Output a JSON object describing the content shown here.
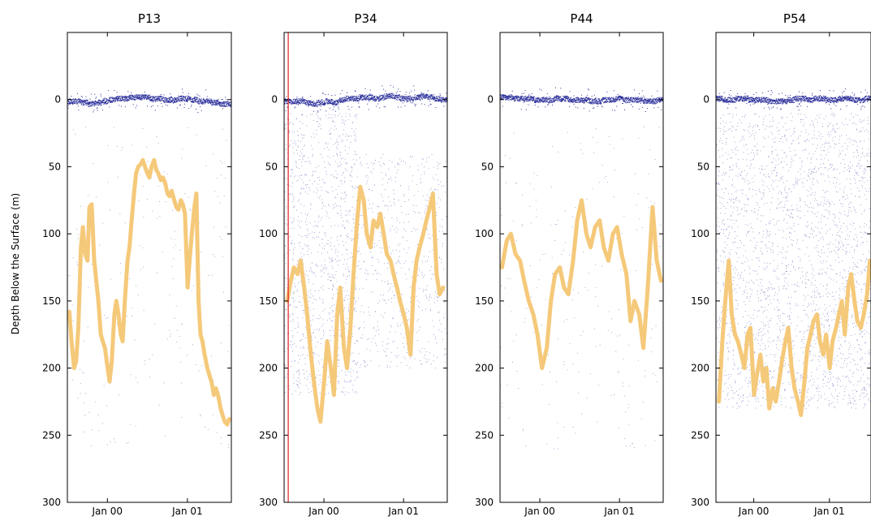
{
  "figure": {
    "ylabel": "Depth Below the Surface (m)"
  },
  "colors": {
    "orange": "#f5c97a",
    "blue": "#2b2f9a",
    "red": "#e02020",
    "axis": "#000000"
  },
  "chart_data": [
    {
      "type": "scatter",
      "title": "P13",
      "ylim": [
        -50,
        300
      ],
      "yticks": [
        0,
        50,
        100,
        150,
        200,
        250,
        300
      ],
      "xrange": [
        "1999-07-01",
        "2001-07-20"
      ],
      "xticks": [
        "1999-12-31",
        "2000-12-31"
      ],
      "xtick_labels": [
        "Jan 00",
        "Jan 01"
      ],
      "series": [
        {
          "kind": "surface-points",
          "x": [
            "1999-08-01",
            "1999-09-01",
            "1999-10-01",
            "1999-11-01",
            "1999-12-01",
            "2000-01-01",
            "2000-02-01",
            "2000-03-01",
            "2000-04-01",
            "2000-05-01",
            "2000-06-01",
            "2000-07-01",
            "2000-08-01",
            "2000-09-01",
            "2000-10-01",
            "2000-11-01",
            "2000-12-01",
            "2001-01-01",
            "2001-02-01",
            "2001-03-01",
            "2001-04-01",
            "2001-05-01",
            "2001-06-01",
            "2001-07-01"
          ],
          "y": [
            1,
            1,
            2,
            3,
            2,
            1,
            0,
            -1,
            -1,
            -2,
            -2,
            -2,
            -1,
            -1,
            0,
            0,
            -1,
            -1,
            0,
            1,
            1,
            2,
            3,
            3
          ]
        },
        {
          "kind": "depth-line",
          "x": [
            "1999-07-10",
            "1999-07-20",
            "1999-08-01",
            "1999-08-10",
            "1999-08-20",
            "1999-09-01",
            "1999-09-10",
            "1999-09-20",
            "1999-10-01",
            "1999-10-10",
            "1999-10-20",
            "1999-11-01",
            "1999-11-10",
            "1999-11-20",
            "1999-12-01",
            "1999-12-10",
            "1999-12-20",
            "2000-01-01",
            "2000-01-10",
            "2000-01-20",
            "2000-02-01",
            "2000-02-10",
            "2000-02-20",
            "2000-03-01",
            "2000-03-10",
            "2000-03-20",
            "2000-04-01",
            "2000-04-10",
            "2000-04-20",
            "2000-05-01",
            "2000-05-10",
            "2000-05-20",
            "2000-06-01",
            "2000-06-10",
            "2000-06-20",
            "2000-07-01",
            "2000-07-10",
            "2000-07-20",
            "2000-08-01",
            "2000-08-10",
            "2000-08-20",
            "2000-09-01",
            "2000-09-10",
            "2000-09-20",
            "2000-10-01",
            "2000-10-10",
            "2000-10-20",
            "2000-11-01",
            "2000-11-10",
            "2000-11-20",
            "2000-12-01",
            "2000-12-10",
            "2000-12-20",
            "2001-01-01",
            "2001-01-10",
            "2001-01-20",
            "2001-02-01",
            "2001-02-10",
            "2001-02-20",
            "2001-03-01",
            "2001-03-10",
            "2001-03-20",
            "2001-04-01",
            "2001-04-10",
            "2001-04-20",
            "2001-05-01",
            "2001-05-10",
            "2001-05-20",
            "2001-06-01",
            "2001-06-10",
            "2001-06-20",
            "2001-07-01",
            "2001-07-10"
          ],
          "y": [
            158,
            180,
            200,
            195,
            170,
            110,
            95,
            115,
            120,
            80,
            78,
            120,
            135,
            150,
            175,
            180,
            185,
            200,
            210,
            195,
            160,
            150,
            160,
            175,
            180,
            150,
            120,
            110,
            90,
            70,
            55,
            50,
            48,
            45,
            50,
            55,
            58,
            50,
            45,
            52,
            55,
            60,
            58,
            62,
            70,
            72,
            68,
            75,
            80,
            82,
            75,
            78,
            85,
            140,
            120,
            100,
            80,
            70,
            150,
            175,
            180,
            190,
            200,
            205,
            210,
            220,
            215,
            220,
            230,
            235,
            240,
            242,
            238
          ]
        }
      ]
    },
    {
      "type": "scatter",
      "title": "P34",
      "ylim": [
        -50,
        300
      ],
      "yticks": [
        0,
        50,
        100,
        150,
        200,
        250,
        300
      ],
      "xrange": [
        "1999-07-01",
        "2001-07-20"
      ],
      "xticks": [
        "1999-12-31",
        "2000-12-31"
      ],
      "xtick_labels": [
        "Jan 00",
        "Jan 01"
      ],
      "vline_x": "1999-07-20",
      "series": [
        {
          "kind": "surface-points",
          "x": [
            "1999-08-01",
            "1999-09-01",
            "1999-10-01",
            "1999-11-01",
            "1999-12-01",
            "2000-01-01",
            "2000-02-01",
            "2000-03-01",
            "2000-04-01",
            "2000-05-01",
            "2000-06-01",
            "2000-07-01",
            "2000-08-01",
            "2000-09-01",
            "2000-10-01",
            "2000-11-01",
            "2000-12-01",
            "2001-01-01",
            "2001-02-01",
            "2001-03-01",
            "2001-04-01",
            "2001-05-01",
            "2001-06-01",
            "2001-07-01"
          ],
          "y": [
            1,
            1,
            1,
            2,
            3,
            2,
            1,
            2,
            0,
            -1,
            -1,
            -2,
            -2,
            -1,
            -2,
            -3,
            -2,
            -1,
            -1,
            -2,
            -3,
            -2,
            -1,
            0
          ]
        },
        {
          "kind": "depth-line",
          "x": [
            "1999-07-15",
            "1999-08-01",
            "1999-08-15",
            "1999-09-01",
            "1999-09-15",
            "1999-10-01",
            "1999-10-15",
            "1999-11-01",
            "1999-11-15",
            "1999-12-01",
            "1999-12-15",
            "2000-01-01",
            "2000-01-15",
            "2000-02-01",
            "2000-02-15",
            "2000-03-01",
            "2000-03-15",
            "2000-04-01",
            "2000-04-15",
            "2000-05-01",
            "2000-05-15",
            "2000-06-01",
            "2000-06-15",
            "2000-07-01",
            "2000-07-15",
            "2000-08-01",
            "2000-08-15",
            "2000-09-01",
            "2000-09-15",
            "2000-10-01",
            "2000-10-15",
            "2000-11-01",
            "2000-11-15",
            "2000-12-01",
            "2000-12-15",
            "2001-01-01",
            "2001-01-15",
            "2001-02-01",
            "2001-02-15",
            "2001-03-01",
            "2001-03-15",
            "2001-04-01",
            "2001-04-15",
            "2001-05-01",
            "2001-05-15",
            "2001-06-01",
            "2001-06-15",
            "2001-07-01"
          ],
          "y": [
            150,
            135,
            125,
            130,
            120,
            140,
            160,
            190,
            210,
            230,
            240,
            210,
            180,
            200,
            220,
            160,
            140,
            185,
            200,
            170,
            130,
            90,
            65,
            75,
            100,
            110,
            90,
            95,
            85,
            100,
            115,
            120,
            130,
            140,
            150,
            160,
            170,
            190,
            140,
            120,
            110,
            100,
            90,
            80,
            70,
            130,
            145,
            140
          ]
        }
      ]
    },
    {
      "type": "scatter",
      "title": "P44",
      "ylim": [
        -50,
        300
      ],
      "yticks": [
        0,
        50,
        100,
        150,
        200,
        250,
        300
      ],
      "xrange": [
        "1999-07-01",
        "2001-07-20"
      ],
      "xticks": [
        "1999-12-31",
        "2000-12-31"
      ],
      "xtick_labels": [
        "Jan 00",
        "Jan 01"
      ],
      "series": [
        {
          "kind": "surface-points",
          "x": [
            "1999-08-01",
            "1999-09-01",
            "1999-10-01",
            "1999-11-01",
            "1999-12-01",
            "2000-01-01",
            "2000-02-01",
            "2000-03-01",
            "2000-04-01",
            "2000-05-01",
            "2000-06-01",
            "2000-07-01",
            "2000-08-01",
            "2000-09-01",
            "2000-10-01",
            "2000-11-01",
            "2000-12-01",
            "2001-01-01",
            "2001-02-01",
            "2001-03-01",
            "2001-04-01",
            "2001-05-01",
            "2001-06-01",
            "2001-07-01"
          ],
          "y": [
            -2,
            -2,
            -1,
            -1,
            -1,
            0,
            0,
            0,
            -1,
            -1,
            0,
            0,
            0,
            1,
            1,
            0,
            0,
            -1,
            0,
            0,
            0,
            1,
            1,
            0
          ]
        },
        {
          "kind": "depth-line",
          "x": [
            "1999-07-10",
            "1999-08-01",
            "1999-08-20",
            "1999-09-10",
            "1999-10-01",
            "1999-10-20",
            "1999-11-10",
            "1999-12-01",
            "1999-12-20",
            "2000-01-10",
            "2000-02-01",
            "2000-02-20",
            "2000-03-10",
            "2000-04-01",
            "2000-04-20",
            "2000-05-10",
            "2000-06-01",
            "2000-06-20",
            "2000-07-10",
            "2000-08-01",
            "2000-08-20",
            "2000-09-10",
            "2000-10-01",
            "2000-10-20",
            "2000-11-10",
            "2000-12-01",
            "2000-12-20",
            "2001-01-10",
            "2001-02-01",
            "2001-02-20",
            "2001-03-10",
            "2001-04-01",
            "2001-04-20",
            "2001-05-10",
            "2001-06-01",
            "2001-06-20",
            "2001-07-10"
          ],
          "y": [
            125,
            105,
            100,
            115,
            120,
            135,
            150,
            160,
            175,
            200,
            185,
            150,
            130,
            125,
            140,
            145,
            120,
            90,
            75,
            100,
            110,
            95,
            90,
            110,
            120,
            100,
            95,
            115,
            130,
            165,
            150,
            160,
            185,
            140,
            80,
            120,
            135
          ]
        }
      ]
    },
    {
      "type": "scatter",
      "title": "P54",
      "ylim": [
        -50,
        300
      ],
      "yticks": [
        0,
        50,
        100,
        150,
        200,
        250,
        300
      ],
      "xrange": [
        "1999-07-01",
        "2001-07-20"
      ],
      "xticks": [
        "1999-12-31",
        "2000-12-31"
      ],
      "xtick_labels": [
        "Jan 00",
        "Jan 01"
      ],
      "series": [
        {
          "kind": "surface-points",
          "x": [
            "1999-08-01",
            "1999-09-01",
            "1999-10-01",
            "1999-11-01",
            "1999-12-01",
            "2000-01-01",
            "2000-02-01",
            "2000-03-01",
            "2000-04-01",
            "2000-05-01",
            "2000-06-01",
            "2000-07-01",
            "2000-08-01",
            "2000-09-01",
            "2000-10-01",
            "2000-11-01",
            "2000-12-01",
            "2001-01-01",
            "2001-02-01",
            "2001-03-01",
            "2001-04-01",
            "2001-05-01",
            "2001-06-01",
            "2001-07-01"
          ],
          "y": [
            -1,
            0,
            0,
            -1,
            -1,
            0,
            0,
            0,
            1,
            1,
            1,
            0,
            -1,
            -1,
            0,
            -1,
            -1,
            0,
            0,
            -1,
            -1,
            0,
            0,
            -1
          ]
        },
        {
          "kind": "depth-line",
          "x": [
            "1999-07-15",
            "1999-08-01",
            "1999-08-15",
            "1999-09-01",
            "1999-09-15",
            "1999-10-01",
            "1999-10-15",
            "1999-11-01",
            "1999-11-15",
            "1999-12-01",
            "1999-12-15",
            "2000-01-01",
            "2000-01-15",
            "2000-02-01",
            "2000-02-15",
            "2000-03-01",
            "2000-03-15",
            "2000-04-01",
            "2000-04-15",
            "2000-05-01",
            "2000-05-15",
            "2000-06-01",
            "2000-06-15",
            "2000-07-01",
            "2000-07-15",
            "2000-08-01",
            "2000-08-15",
            "2000-09-01",
            "2000-09-15",
            "2000-10-01",
            "2000-10-15",
            "2000-11-01",
            "2000-11-15",
            "2000-12-01",
            "2000-12-15",
            "2001-01-01",
            "2001-01-15",
            "2001-02-01",
            "2001-02-15",
            "2001-03-01",
            "2001-03-15",
            "2001-04-01",
            "2001-04-15",
            "2001-05-01",
            "2001-05-15",
            "2001-06-01",
            "2001-06-15",
            "2001-07-01",
            "2001-07-15"
          ],
          "y": [
            225,
            180,
            150,
            120,
            160,
            175,
            180,
            190,
            200,
            175,
            170,
            220,
            205,
            190,
            210,
            200,
            230,
            215,
            225,
            210,
            195,
            180,
            170,
            200,
            215,
            225,
            235,
            210,
            185,
            175,
            165,
            160,
            180,
            190,
            175,
            200,
            180,
            170,
            160,
            150,
            175,
            140,
            130,
            150,
            165,
            170,
            160,
            145,
            120
          ]
        }
      ]
    }
  ]
}
